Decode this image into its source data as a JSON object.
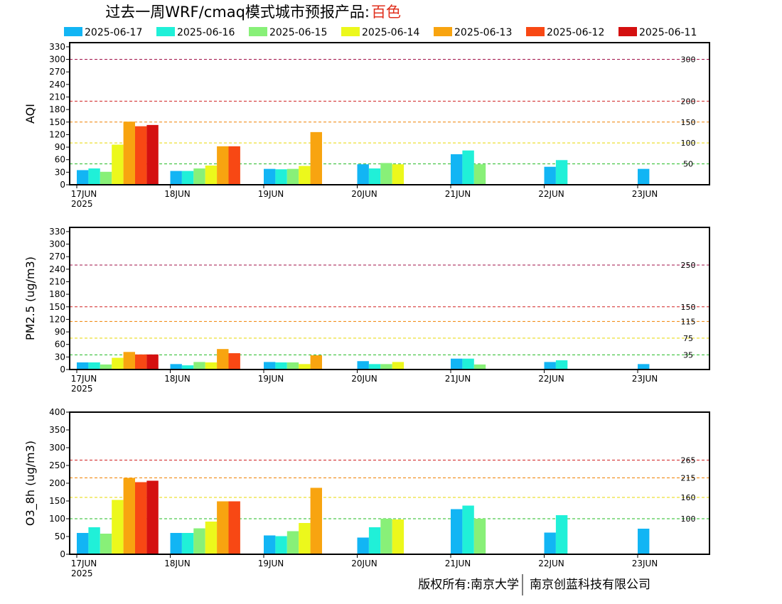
{
  "title": {
    "main": "过去一周WRF/cmaq模式城市预报产品:",
    "city": "百色",
    "city_color": "#e0301e"
  },
  "footer": {
    "left": "版权所有:南京大学",
    "right": "南京创蓝科技有限公司"
  },
  "colors": {
    "grid_green": "#22bb22",
    "grid_yellow": "#e8d800",
    "grid_orange": "#f08000",
    "grid_red": "#d02020",
    "grid_purple": "#a01048",
    "grid_maroon": "#800000"
  },
  "chart_data": {
    "type": "bar",
    "legend": {
      "placement": "top",
      "series": [
        {
          "name": "2025-06-17",
          "color": "#12b5f4"
        },
        {
          "name": "2025-06-16",
          "color": "#20f0d8"
        },
        {
          "name": "2025-06-15",
          "color": "#88f078"
        },
        {
          "name": "2025-06-14",
          "color": "#ecf81c"
        },
        {
          "name": "2025-06-13",
          "color": "#f8a410"
        },
        {
          "name": "2025-06-12",
          "color": "#f84814"
        },
        {
          "name": "2025-06-11",
          "color": "#d41010"
        }
      ]
    },
    "x_ticks": [
      "17JUN",
      "18JUN",
      "19JUN",
      "20JUN",
      "21JUN",
      "22JUN",
      "23JUN"
    ],
    "x_year": "2025",
    "panels": [
      {
        "ylabel": "AQI",
        "ylim": [
          0,
          340
        ],
        "yticks": [
          0,
          30,
          60,
          90,
          120,
          150,
          180,
          210,
          240,
          270,
          300,
          330
        ],
        "thresholds": [
          {
            "value": 50,
            "label": "50",
            "color": "grid_green"
          },
          {
            "value": 100,
            "label": "100",
            "color": "grid_yellow"
          },
          {
            "value": 150,
            "label": "150",
            "color": "grid_orange"
          },
          {
            "value": 200,
            "label": "200",
            "color": "grid_red"
          },
          {
            "value": 300,
            "label": "300",
            "color": "grid_purple"
          }
        ],
        "groups": [
          [
            35,
            39,
            31,
            96,
            151,
            140,
            143
          ],
          [
            33,
            33,
            39,
            46,
            92,
            92
          ],
          [
            38,
            37,
            38,
            45,
            126
          ],
          [
            49,
            39,
            52,
            49
          ],
          [
            73,
            82,
            49
          ],
          [
            43,
            59
          ],
          [
            38
          ]
        ]
      },
      {
        "ylabel": "PM2.5 (ug/m3)",
        "ylim": [
          0,
          340
        ],
        "yticks": [
          0,
          30,
          60,
          90,
          120,
          150,
          180,
          210,
          240,
          270,
          300,
          330
        ],
        "thresholds": [
          {
            "value": 35,
            "label": "35",
            "color": "grid_green"
          },
          {
            "value": 75,
            "label": "75",
            "color": "grid_yellow"
          },
          {
            "value": 115,
            "label": "115",
            "color": "grid_orange"
          },
          {
            "value": 150,
            "label": "150",
            "color": "grid_red"
          },
          {
            "value": 250,
            "label": "250",
            "color": "grid_purple"
          }
        ],
        "groups": [
          [
            17,
            17,
            12,
            28,
            42,
            36,
            36
          ],
          [
            13,
            10,
            18,
            17,
            49,
            39
          ],
          [
            18,
            17,
            17,
            13,
            34
          ],
          [
            20,
            13,
            13,
            18
          ],
          [
            26,
            26,
            12
          ],
          [
            18,
            22
          ],
          [
            13
          ]
        ]
      },
      {
        "ylabel": "O3_8h (ug/m3)",
        "ylim": [
          0,
          400
        ],
        "yticks": [
          0,
          50,
          100,
          150,
          200,
          250,
          300,
          350,
          400
        ],
        "thresholds": [
          {
            "value": 100,
            "label": "100",
            "color": "grid_green"
          },
          {
            "value": 160,
            "label": "160",
            "color": "grid_yellow"
          },
          {
            "value": 215,
            "label": "215",
            "color": "grid_orange"
          },
          {
            "value": 265,
            "label": "265",
            "color": "grid_red"
          }
        ],
        "groups": [
          [
            60,
            76,
            58,
            153,
            215,
            203,
            207
          ],
          [
            60,
            60,
            73,
            92,
            149,
            149
          ],
          [
            53,
            51,
            65,
            88,
            187
          ],
          [
            47,
            76,
            100,
            98
          ],
          [
            127,
            137,
            100
          ],
          [
            61,
            110
          ],
          [
            72
          ]
        ]
      }
    ]
  }
}
